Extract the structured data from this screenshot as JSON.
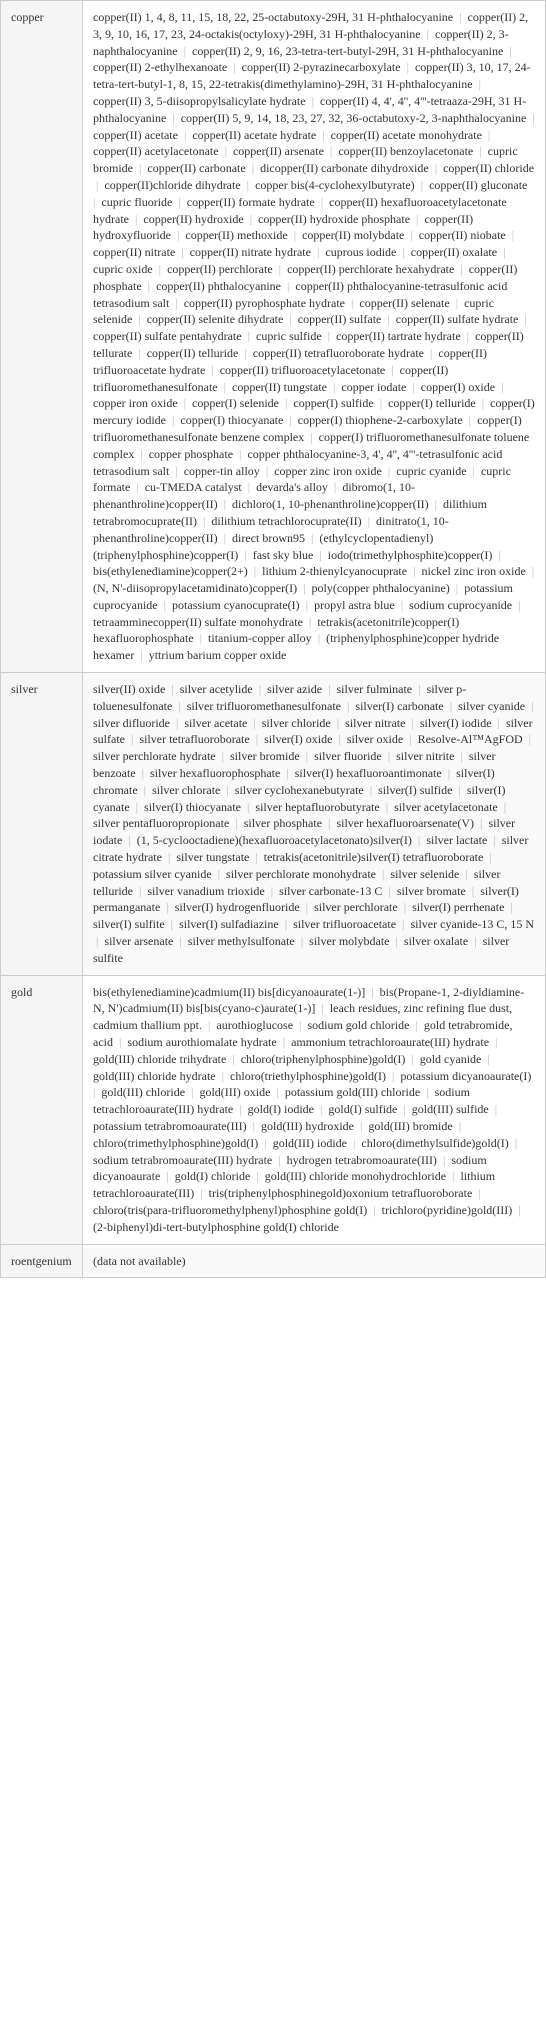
{
  "rows": [
    {
      "label": "copper",
      "content": "copper(II) 1, 4, 8, 11, 15, 18, 22, 25-octabutoxy-29H, 31 H-phthalocyanine | copper(II) 2, 3, 9, 10, 16, 17, 23, 24-octakis(octyloxy)-29H, 31 H-phthalocyanine | copper(II) 2, 3-naphthalocyanine | copper(II) 2, 9, 16, 23-tetra-tert-butyl-29H, 31 H-phthalocyanine | copper(II) 2-ethylhexanoate | copper(II) 2-pyrazinecarboxylate | copper(II) 3, 10, 17, 24-tetra-tert-butyl-1, 8, 15, 22-tetrakis(dimethylamino)-29H, 31 H-phthalocyanine | copper(II) 3, 5-diisopropylsalicylate hydrate | copper(II) 4, 4', 4'', 4'''-tetraaza-29H, 31 H-phthalocyanine | copper(II) 5, 9, 14, 18, 23, 27, 32, 36-octabutoxy-2, 3-naphthalocyanine | copper(II) acetate | copper(II) acetate hydrate | copper(II) acetate monohydrate | copper(II) acetylacetonate | copper(II) arsenate | copper(II) benzoylacetonate | cupric bromide | copper(II) carbonate | dicopper(II) carbonate dihydroxide | copper(II) chloride | copper(II)chloride dihydrate | copper bis(4-cyclohexylbutyrate) | copper(II) gluconate | cupric fluoride | copper(II) formate hydrate | copper(II) hexafluoroacetylacetonate hydrate | copper(II) hydroxide | copper(II) hydroxide phosphate | copper(II) hydroxyfluoride | copper(II) methoxide | copper(II) molybdate | copper(II) niobate | copper(II) nitrate | copper(II) nitrate hydrate | cuprous iodide | copper(II) oxalate | cupric oxide | copper(II) perchlorate | copper(II) perchlorate hexahydrate | copper(II) phosphate | copper(II) phthalocyanine | copper(II) phthalocyanine-tetrasulfonic acid tetrasodium salt | copper(II) pyrophosphate hydrate | copper(II) selenate | cupric selenide | copper(II) selenite dihydrate | copper(II) sulfate | copper(II) sulfate hydrate | copper(II) sulfate pentahydrate | cupric sulfide | copper(II) tartrate hydrate | copper(II) tellurate | copper(II) telluride | copper(II) tetrafluoroborate hydrate | copper(II) trifluoroacetate hydrate | copper(II) trifluoroacetylacetonate | copper(II) trifluoromethanesulfonate | copper(II) tungstate | copper iodate | copper(I) oxide | copper iron oxide | copper(I) selenide | copper(I) sulfide | copper(I) telluride | copper(I) mercury iodide | copper(I) thiocyanate | copper(I) thiophene-2-carboxylate | copper(I) trifluoromethanesulfonate benzene complex | copper(I) trifluoromethanesulfonate toluene complex | copper phosphate | copper phthalocyanine-3, 4', 4'', 4'''-tetrasulfonic acid tetrasodium salt | copper-tin alloy | copper zinc iron oxide | cupric cyanide | cupric formate | cu-TMEDA catalyst | devarda's alloy | dibromo(1, 10-phenanthroline)copper(II) | dichloro(1, 10-phenanthroline)copper(II) | dilithium tetrabromocuprate(II) | dilithium tetrachlorocuprate(II) | dinitrato(1, 10-phenanthroline)copper(II) | direct brown95 | (ethylcyclopentadienyl)(triphenylphosphine)copper(I) | fast sky blue | iodo(trimethylphosphite)copper(I) | bis(ethylenediamine)copper(2+) | lithium 2-thienylcyanocuprate | nickel zinc iron oxide | (N, N'-diisopropylacetamidinato)copper(I) | poly(copper phthalocyanine) | potassium cuprocyanide | potassium cyanocuprate(I) | propyl astra blue | sodium cuprocyanide | tetraamminecopper(II) sulfate monohydrate | tetrakis(acetonitrile)copper(I) hexafluorophosphate | titanium-copper alloy | (triphenylphosphine)copper hydride hexamer | yttrium barium copper oxide"
    },
    {
      "label": "silver",
      "content": "silver(II) oxide | silver acetylide | silver azide | silver fulminate | silver p-toluenesulfonate | silver trifluoromethanesulfonate | silver(I) carbonate | silver cyanide | silver difluoride | silver acetate | silver chloride | silver nitrate | silver(I) iodide | silver sulfate | silver tetrafluoroborate | silver(I) oxide | silver oxide | Resolve-Al™AgFOD | silver perchlorate hydrate | silver bromide | silver fluoride | silver nitrite | silver benzoate | silver hexafluorophosphate | silver(I) hexafluoroantimonate | silver(I) chromate | silver chlorate | silver cyclohexanebutyrate | silver(I) sulfide | silver(I) cyanate | silver(I) thiocyanate | silver heptafluorobutyrate | silver acetylacetonate | silver pentafluoropropionate | silver phosphate | silver hexafluoroarsenate(V) | silver iodate | (1, 5-cyclooctadiene)(hexafluoroacetylacetonato)silver(I) | silver lactate | silver citrate hydrate | silver tungstate | tetrakis(acetonitrile)silver(I) tetrafluoroborate | potassium silver cyanide | silver perchlorate monohydrate | silver selenide | silver telluride | silver vanadium trioxide | silver carbonate-13 C | silver bromate | silver(I) permanganate | silver(I) hydrogenfluoride | silver perchlorate | silver(I) perrhenate | silver(I) sulfite | silver(I) sulfadiazine | silver trifluoroacetate | silver cyanide-13 C, 15 N | silver arsenate | silver methylsulfonate | silver molybdate | silver oxalate | silver sulfite"
    },
    {
      "label": "gold",
      "content": "bis(ethylenediamine)cadmium(II) bis[dicyanoaurate(1-)] | bis(Propane-1, 2-diyldiamine-N, N')cadmium(II) bis[bis(cyano-c)aurate(1-)] | leach residues, zinc refining flue dust, cadmium thallium ppt. | aurothioglucose | sodium gold chloride | gold tetrabromide, acid | sodium aurothiomalate hydrate | ammonium tetrachloroaurate(III) hydrate | gold(III) chloride trihydrate | chloro(triphenylphosphine)gold(I) | gold cyanide | gold(III) chloride hydrate | chloro(triethylphosphine)gold(I) | potassium dicyanoaurate(I) | gold(III) chloride | gold(III) oxide | potassium gold(III) chloride | sodium tetrachloroaurate(III) hydrate | gold(I) iodide | gold(I) sulfide | gold(III) sulfide | potassium tetrabromoaurate(III) | gold(III) hydroxide | gold(III) bromide | chloro(trimethylphosphine)gold(I) | gold(III) iodide | chloro(dimethylsulfide)gold(I) | sodium tetrabromoaurate(III) hydrate | hydrogen tetrabromoaurate(III) | sodium dicyanoaurate | gold(I) chloride | gold(III) chloride monohydrochloride | lithium tetrachloroaurate(III) | tris(triphenylphosphinegold)oxonium tetrafluoroborate | chloro(tris(para-trifluoromethylphenyl)phosphine gold(I) | trichloro(pyridine)gold(III) | (2-biphenyl)di-tert-butylphosphine gold(I) chloride"
    },
    {
      "label": "roentgenium",
      "content": "(data not available)"
    }
  ]
}
